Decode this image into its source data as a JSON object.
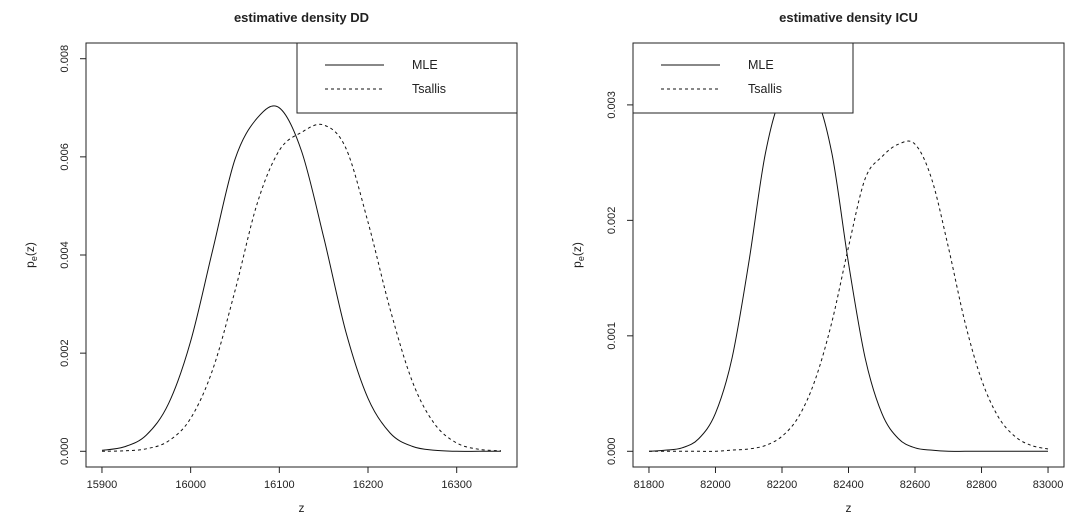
{
  "chart_data": [
    {
      "type": "line",
      "title": "estimative density DD",
      "xlabel": "z",
      "ylabel": "pₑ(z)",
      "ylabel_main": "p",
      "ylabel_sub": "e",
      "ylabel_tail": "(z)",
      "xlim": [
        15900,
        16350
      ],
      "ylim": [
        0,
        0.008
      ],
      "xticks": [
        15900,
        16000,
        16100,
        16200,
        16300
      ],
      "xtick_labels": [
        "15900",
        "16000",
        "16100",
        "16200",
        "16300"
      ],
      "yticks": [
        0,
        0.002,
        0.004,
        0.006,
        0.008
      ],
      "ytick_labels": [
        "0.000",
        "0.002",
        "0.004",
        "0.006",
        "0.008"
      ],
      "legend_position": "top-right",
      "grid": false,
      "series": [
        {
          "name": "MLE",
          "style": "solid",
          "x": [
            15900,
            15925,
            15950,
            15975,
            16000,
            16025,
            16050,
            16075,
            16100,
            16125,
            16150,
            16175,
            16200,
            16225,
            16250,
            16275,
            16300,
            16325,
            16350
          ],
          "y": [
            2e-05,
            9e-05,
            0.00033,
            0.00097,
            0.00224,
            0.00411,
            0.00595,
            0.00679,
            0.007,
            0.00612,
            0.00436,
            0.00244,
            0.00108,
            0.00037,
            0.0001,
            2e-05,
            0.0,
            0.0,
            0.0
          ]
        },
        {
          "name": "Tsallis",
          "style": "dashed",
          "x": [
            15900,
            15925,
            15950,
            15975,
            16000,
            16025,
            16050,
            16075,
            16100,
            16125,
            16150,
            16175,
            16200,
            16225,
            16250,
            16275,
            16300,
            16325,
            16350
          ],
          "y": [
            0.0,
            1e-05,
            5e-05,
            0.00021,
            0.00067,
            0.00167,
            0.00327,
            0.00505,
            0.00613,
            0.0065,
            0.00665,
            0.00618,
            0.00467,
            0.00289,
            0.00142,
            0.00056,
            0.00017,
            4e-05,
            1e-05
          ]
        }
      ]
    },
    {
      "type": "line",
      "title": "estimative density ICU",
      "xlabel": "z",
      "ylabel": "pₑ(z)",
      "ylabel_main": "p",
      "ylabel_sub": "e",
      "ylabel_tail": "(z)",
      "xlim": [
        81800,
        83000
      ],
      "ylim": [
        0,
        0.0034
      ],
      "xticks": [
        81800,
        82000,
        82200,
        82400,
        82600,
        82800,
        83000
      ],
      "xtick_labels": [
        "81800",
        "82000",
        "82200",
        "82400",
        "82600",
        "82800",
        "83000"
      ],
      "yticks": [
        0,
        0.001,
        0.002,
        0.003
      ],
      "ytick_labels": [
        "0.000",
        "0.001",
        "0.002",
        "0.003"
      ],
      "legend_position": "top-left",
      "grid": false,
      "series": [
        {
          "name": "MLE",
          "style": "solid",
          "x": [
            81800,
            81850,
            81900,
            81950,
            82000,
            82050,
            82100,
            82150,
            82200,
            82250,
            82300,
            82350,
            82400,
            82450,
            82500,
            82550,
            82600,
            82650,
            82700,
            82750,
            82800,
            82850,
            82900,
            82950,
            83000
          ],
          "y": [
            0.0,
            1e-05,
            3e-05,
            0.00011,
            0.00033,
            0.00081,
            0.00163,
            0.00258,
            0.00307,
            0.00298,
            0.00307,
            0.00258,
            0.00163,
            0.00081,
            0.00033,
            0.00011,
            3e-05,
            1e-05,
            0.0,
            0.0,
            0.0,
            0.0,
            0.0,
            0.0,
            0.0
          ]
        },
        {
          "name": "Tsallis",
          "style": "dashed",
          "x": [
            81800,
            81850,
            81900,
            81950,
            82000,
            82050,
            82100,
            82150,
            82200,
            82250,
            82300,
            82350,
            82400,
            82450,
            82500,
            82550,
            82600,
            82650,
            82700,
            82750,
            82800,
            82850,
            82900,
            82950,
            83000
          ],
          "y": [
            0.0,
            0.0,
            0.0,
            0.0,
            0.0,
            1e-05,
            2e-05,
            5e-05,
            0.00013,
            0.0003,
            0.00062,
            0.00112,
            0.00177,
            0.00236,
            0.00255,
            0.00266,
            0.00266,
            0.00236,
            0.00177,
            0.00112,
            0.00062,
            0.0003,
            0.00013,
            5e-05,
            2e-05
          ]
        }
      ]
    }
  ]
}
